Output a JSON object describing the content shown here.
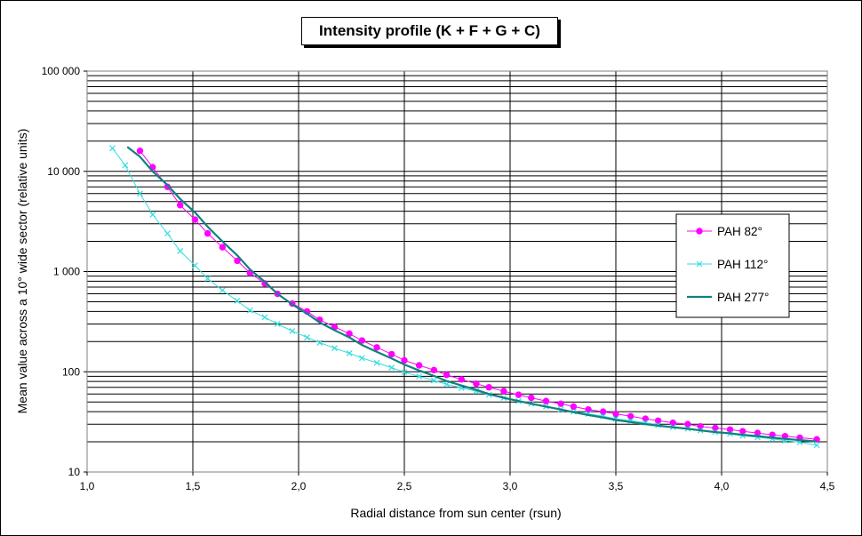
{
  "chart_data": {
    "type": "line",
    "title": "Intensity profile (K + F + G + C)",
    "xlabel": "Radial distance from sun center (rsun)",
    "ylabel": "Mean value across a 10° wide sector (relative units)",
    "xlim": [
      1.0,
      4.5
    ],
    "ylim": [
      10,
      100000
    ],
    "yscale": "log",
    "grid": true,
    "legend_position": "right",
    "x_ticks": [
      "1,0",
      "1,5",
      "2,0",
      "2,5",
      "3,0",
      "3,5",
      "4,0",
      "4,5"
    ],
    "y_ticks": [
      "10",
      "100",
      "1 000",
      "10 000",
      "100 000"
    ],
    "series": [
      {
        "name": "PAH 82°",
        "color": "#ff00ff",
        "marker": "circle",
        "x": [
          1.25,
          1.31,
          1.38,
          1.44,
          1.51,
          1.57,
          1.64,
          1.71,
          1.77,
          1.84,
          1.9,
          1.97,
          2.04,
          2.1,
          2.17,
          2.24,
          2.3,
          2.37,
          2.44,
          2.5,
          2.57,
          2.64,
          2.7,
          2.77,
          2.84,
          2.9,
          2.97,
          3.04,
          3.1,
          3.17,
          3.24,
          3.3,
          3.37,
          3.44,
          3.5,
          3.57,
          3.64,
          3.7,
          3.77,
          3.84,
          3.9,
          3.97,
          4.04,
          4.1,
          4.17,
          4.24,
          4.3,
          4.37,
          4.45
        ],
        "y": [
          16000,
          11000,
          7000,
          4600,
          3300,
          2400,
          1750,
          1280,
          970,
          760,
          600,
          480,
          400,
          330,
          280,
          240,
          205,
          175,
          150,
          130,
          116,
          104,
          93,
          84,
          76,
          70,
          64,
          59,
          55,
          51,
          48,
          45,
          42,
          40,
          38,
          36,
          34,
          32.5,
          31,
          30,
          28.5,
          27.5,
          26.5,
          25.5,
          24.5,
          23.5,
          22.8,
          22,
          21.2
        ]
      },
      {
        "name": "PAH 112°",
        "color": "#33dddd",
        "marker": "x",
        "x": [
          1.12,
          1.18,
          1.25,
          1.31,
          1.38,
          1.44,
          1.51,
          1.57,
          1.64,
          1.71,
          1.77,
          1.84,
          1.9,
          1.97,
          2.04,
          2.1,
          2.17,
          2.24,
          2.3,
          2.37,
          2.44,
          2.5,
          2.57,
          2.64,
          2.7,
          2.77,
          2.84,
          2.9,
          2.97,
          3.04,
          3.1,
          3.17,
          3.24,
          3.3,
          3.37,
          3.44,
          3.5,
          3.57,
          3.64,
          3.7,
          3.77,
          3.84,
          3.9,
          3.97,
          4.04,
          4.1,
          4.17,
          4.24,
          4.3,
          4.37,
          4.45
        ],
        "y": [
          17000,
          11500,
          6000,
          3700,
          2400,
          1600,
          1150,
          850,
          650,
          510,
          410,
          350,
          300,
          255,
          220,
          195,
          172,
          153,
          137,
          123,
          110,
          99,
          90,
          82,
          75,
          69,
          64,
          59,
          55,
          51,
          48,
          45,
          42,
          40,
          38,
          36,
          34,
          32.5,
          31,
          29.5,
          28,
          27,
          26,
          25,
          24,
          23,
          22.2,
          21.4,
          20.6,
          19.8,
          18.5
        ]
      },
      {
        "name": "PAH 277°",
        "color": "#108080",
        "marker": "none",
        "x": [
          1.19,
          1.25,
          1.31,
          1.38,
          1.44,
          1.51,
          1.57,
          1.64,
          1.71,
          1.77,
          1.84,
          1.9,
          1.97,
          2.04,
          2.1,
          2.17,
          2.24,
          2.3,
          2.37,
          2.44,
          2.5,
          2.57,
          2.64,
          2.7,
          2.77,
          2.84,
          2.9,
          2.97,
          3.04,
          3.1,
          3.17,
          3.24,
          3.3,
          3.37,
          3.44,
          3.5,
          3.57,
          3.64,
          3.7,
          3.77,
          3.84,
          3.9,
          3.97,
          4.04,
          4.1,
          4.17,
          4.24,
          4.3,
          4.37,
          4.45
        ],
        "y": [
          17500,
          14000,
          10000,
          7300,
          5300,
          3900,
          2800,
          2000,
          1450,
          1050,
          790,
          600,
          470,
          380,
          310,
          260,
          220,
          185,
          158,
          136,
          118,
          103,
          91,
          81,
          73,
          66,
          60,
          55,
          51,
          48,
          45,
          42,
          39.5,
          37,
          35,
          33,
          31.5,
          30,
          29,
          28,
          27,
          26,
          25,
          24.3,
          23.5,
          22.8,
          22,
          21.4,
          20.8,
          20.2
        ]
      }
    ]
  }
}
